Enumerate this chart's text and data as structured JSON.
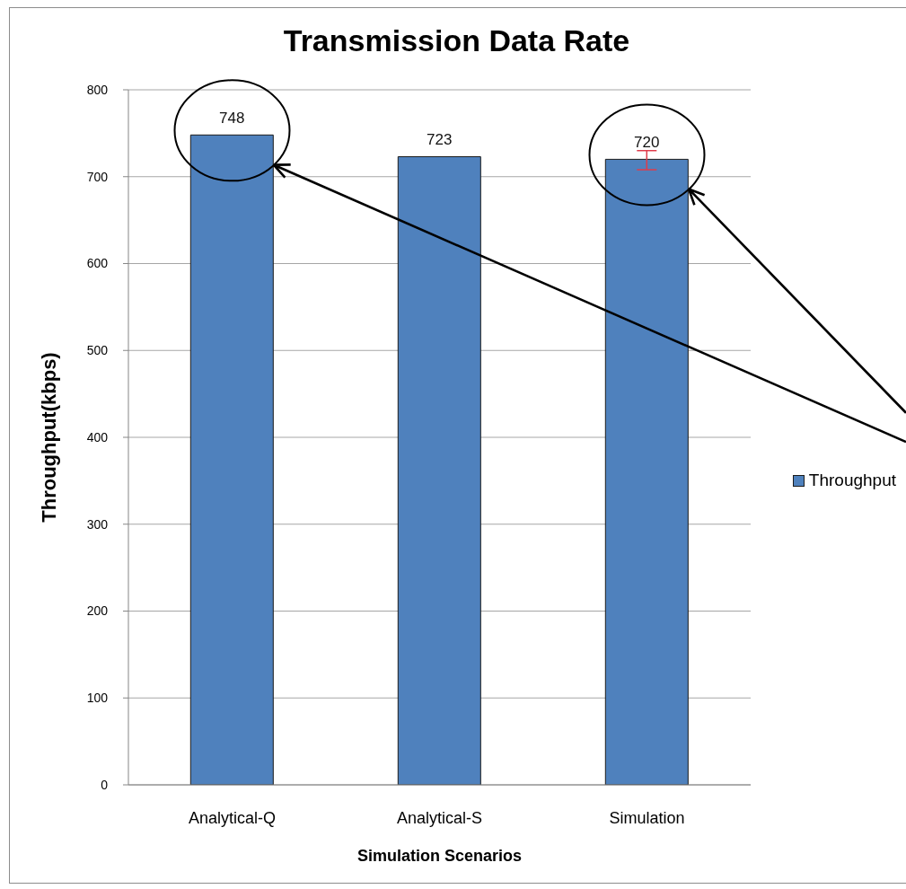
{
  "chart_data": {
    "type": "bar",
    "title": "Transmission Data Rate",
    "xlabel": "Simulation Scenarios",
    "ylabel": "Throughput(kbps)",
    "categories": [
      "Analytical-Q",
      "Analytical-S",
      "Simulation"
    ],
    "series": [
      {
        "name": "Throughput",
        "color": "#4f81bd",
        "values": [
          748,
          723,
          720
        ],
        "errors": [
          null,
          null,
          [
            708,
            730
          ]
        ]
      }
    ],
    "ylim": [
      0,
      800
    ],
    "yticks": [
      0,
      100,
      200,
      300,
      400,
      500,
      600,
      700,
      800
    ],
    "grid": "y",
    "legend": "right",
    "data_labels": true
  }
}
